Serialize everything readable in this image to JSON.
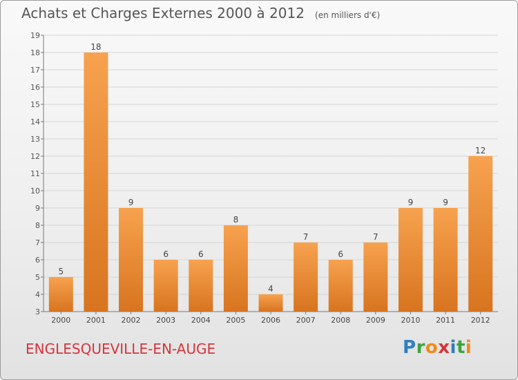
{
  "title": "Achats et Charges Externes 2000 à 2012",
  "unit": "(en milliers d'€)",
  "location": "ENGLESQUEVILLE-EN-AUGE",
  "logo": {
    "text": "Proxiti",
    "letters": [
      {
        "ch": "P",
        "color": "#2f7fc1"
      },
      {
        "ch": "r",
        "color": "#3da33d"
      },
      {
        "ch": "o",
        "color": "#f08a1c"
      },
      {
        "ch": "x",
        "color": "#d6343b"
      },
      {
        "ch": "i",
        "color": "#2f7fc1"
      },
      {
        "ch": "t",
        "color": "#3da33d"
      },
      {
        "ch": "i",
        "color": "#f08a1c"
      }
    ]
  },
  "chart_data": {
    "type": "bar",
    "title": "Achats et Charges Externes 2000 à 2012",
    "xlabel": "",
    "ylabel": "",
    "categories": [
      "2000",
      "2001",
      "2002",
      "2003",
      "2004",
      "2005",
      "2006",
      "2007",
      "2008",
      "2009",
      "2010",
      "2011",
      "2012"
    ],
    "values": [
      5,
      18,
      9,
      6,
      6,
      8,
      4,
      7,
      6,
      7,
      9,
      9,
      12
    ],
    "ylim": [
      3,
      19
    ],
    "yticks": [
      3,
      4,
      5,
      6,
      7,
      8,
      9,
      10,
      11,
      12,
      13,
      14,
      15,
      16,
      17,
      18,
      19
    ],
    "grid": true,
    "bar_color": "#f0913a",
    "data_labels": true
  }
}
